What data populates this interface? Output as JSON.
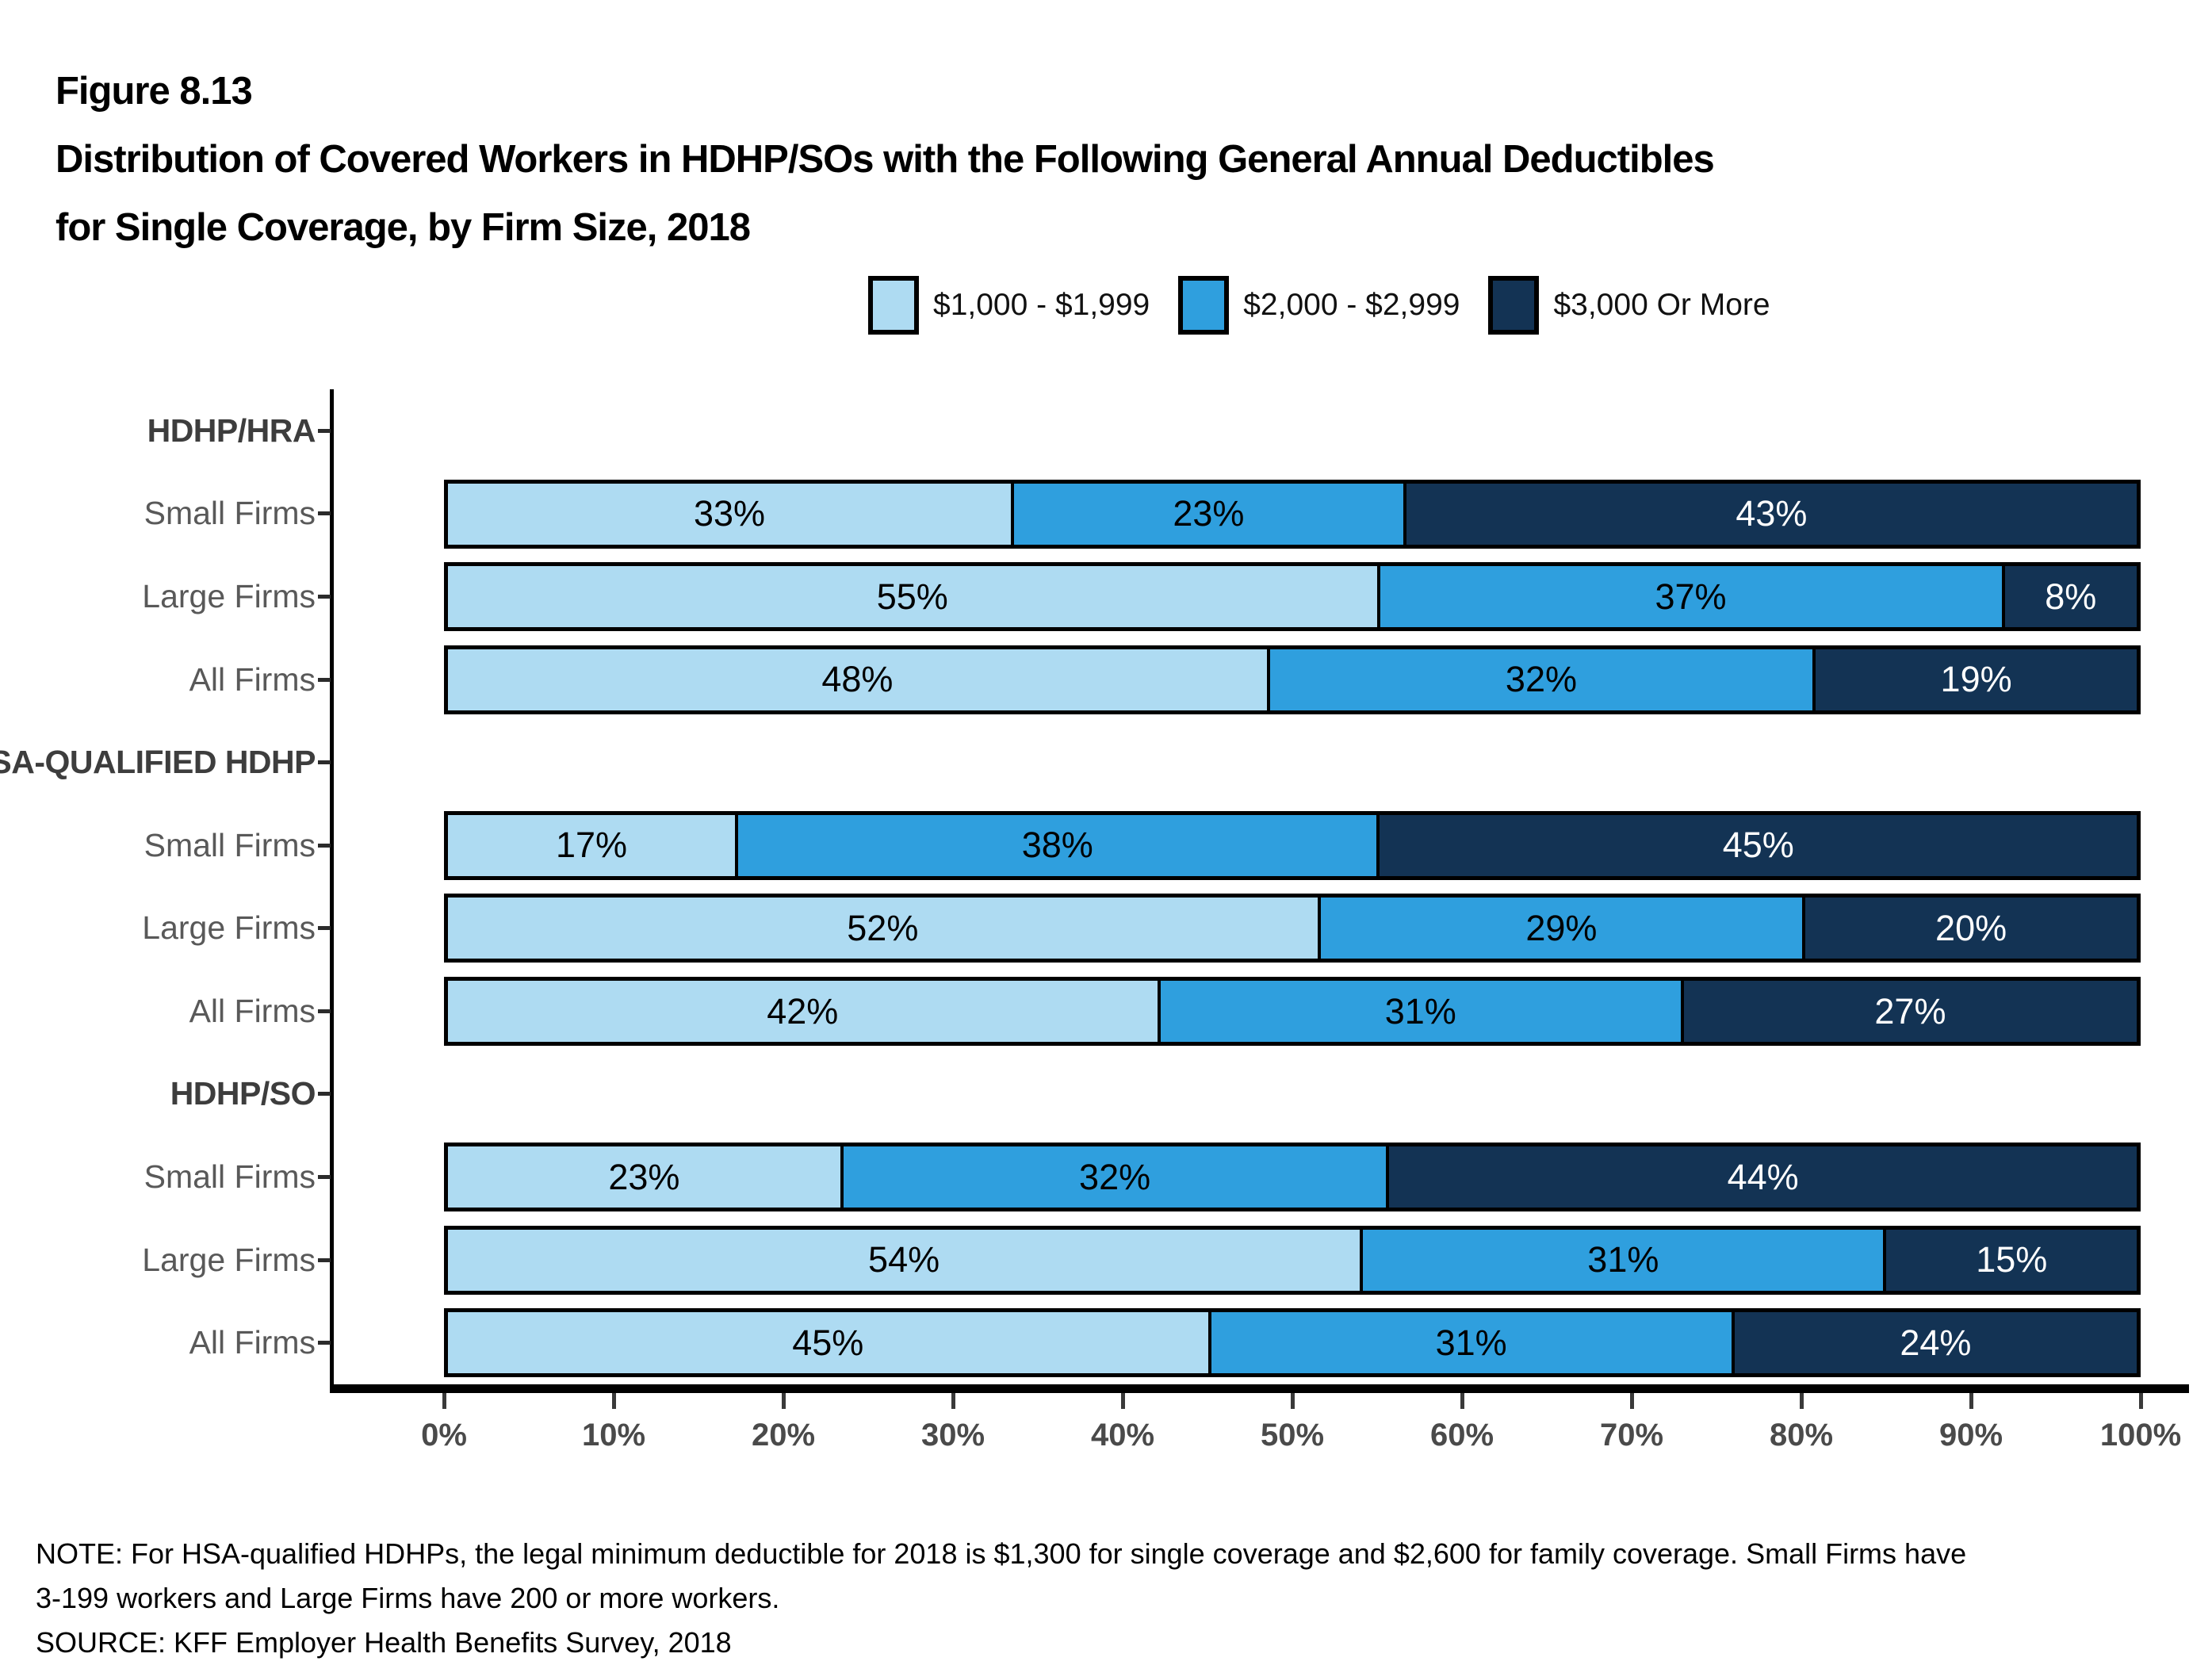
{
  "header": {
    "figure_number": "Figure 8.13",
    "title_line1": "Distribution of Covered Workers in HDHP/SOs with the Following General Annual Deductibles",
    "title_line2": "for Single Coverage, by Firm Size, 2018"
  },
  "notes": {
    "note_line1": "NOTE: For HSA-qualified HDHPs, the legal minimum deductible for 2018 is $1,300 for single coverage and $2,600 for family coverage. Small Firms have",
    "note_line2": "3-199 workers and Large Firms have 200 or more workers.",
    "source": "SOURCE: KFF Employer Health Benefits Survey, 2018"
  },
  "chart_data": {
    "type": "bar",
    "orientation": "horizontal_stacked",
    "title": "Distribution of Covered Workers in HDHP/SOs with the Following General Annual Deductibles for Single Coverage, by Firm Size, 2018",
    "legend_position": "top",
    "value_suffix": "%",
    "xlim": [
      0,
      100
    ],
    "x_tick_labels": [
      "0%",
      "10%",
      "20%",
      "30%",
      "40%",
      "50%",
      "60%",
      "70%",
      "80%",
      "90%",
      "100%"
    ],
    "series": [
      {
        "name": "$1,000 - $1,999",
        "color": "#AEDBF2",
        "label_color": "#000000"
      },
      {
        "name": "$2,000 - $2,999",
        "color": "#2F9FDE",
        "label_color": "#000000"
      },
      {
        "name": "$3,000 Or More",
        "color": "#133354",
        "label_color": "#FFFFFF"
      }
    ],
    "groups": [
      {
        "label": "HDHP/HRA",
        "rows": [
          {
            "label": "Small Firms",
            "values": [
              33,
              23,
              43
            ]
          },
          {
            "label": "Large Firms",
            "values": [
              55,
              37,
              8
            ]
          },
          {
            "label": "All Firms",
            "values": [
              48,
              32,
              19
            ]
          }
        ]
      },
      {
        "label": "HSA-QUALIFIED HDHP",
        "rows": [
          {
            "label": "Small Firms",
            "values": [
              17,
              38,
              45
            ]
          },
          {
            "label": "Large Firms",
            "values": [
              52,
              29,
              20
            ]
          },
          {
            "label": "All Firms",
            "values": [
              42,
              31,
              27
            ]
          }
        ]
      },
      {
        "label": "HDHP/SO",
        "rows": [
          {
            "label": "Small Firms",
            "values": [
              23,
              32,
              44
            ]
          },
          {
            "label": "Large Firms",
            "values": [
              54,
              31,
              15
            ]
          },
          {
            "label": "All Firms",
            "values": [
              45,
              31,
              24
            ]
          }
        ]
      }
    ]
  }
}
